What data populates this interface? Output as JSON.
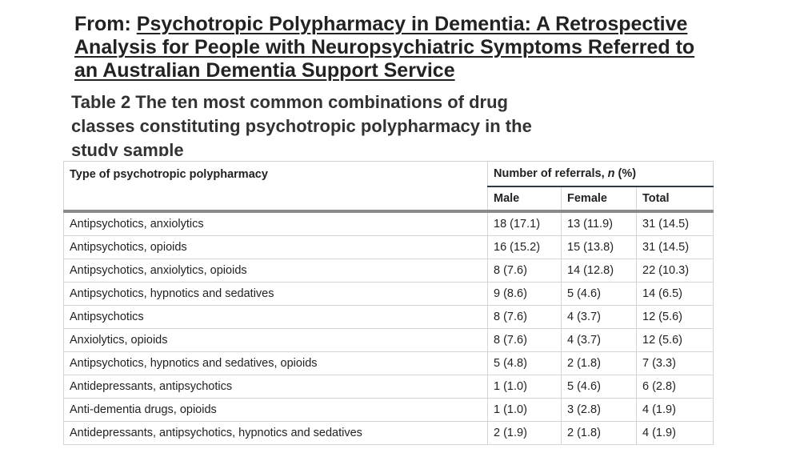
{
  "header": {
    "from_prefix": "From: ",
    "article_title": "Psychotropic Polypharmacy in Dementia: A Retrospective Analysis for People with Neuropsychiatric Symptoms Referred to an Australian Dementia Support Service",
    "table_caption": "Table 2 The ten most common combinations of drug classes constituting psychotropic polypharmacy in the study sample"
  },
  "table": {
    "col_type": "Type of psychotropic polypharmacy",
    "group_prefix": "Number of referrals, ",
    "group_n": "n",
    "group_suffix": " (%)",
    "col_male": "Male",
    "col_female": "Female",
    "col_total": "Total",
    "rows": [
      {
        "type": "Antipsychotics, anxiolytics",
        "male": "18 (17.1)",
        "female": "13 (11.9)",
        "total": "31 (14.5)"
      },
      {
        "type": "Antipsychotics, opioids",
        "male": "16 (15.2)",
        "female": "15 (13.8)",
        "total": "31 (14.5)"
      },
      {
        "type": "Antipsychotics, anxiolytics, opioids",
        "male": "8 (7.6)",
        "female": "14 (12.8)",
        "total": "22 (10.3)"
      },
      {
        "type": "Antipsychotics, hypnotics and sedatives",
        "male": "9 (8.6)",
        "female": "5 (4.6)",
        "total": "14 (6.5)"
      },
      {
        "type": "Antipsychotics",
        "male": "8 (7.6)",
        "female": "4 (3.7)",
        "total": "12 (5.6)"
      },
      {
        "type": "Anxiolytics, opioids",
        "male": "8 (7.6)",
        "female": "4 (3.7)",
        "total": "12 (5.6)"
      },
      {
        "type": "Antipsychotics, hypnotics and sedatives, opioids",
        "male": "5 (4.8)",
        "female": "2 (1.8)",
        "total": "7 (3.3)"
      },
      {
        "type": "Antidepressants, antipsychotics",
        "male": "1 (1.0)",
        "female": "5 (4.6)",
        "total": "6 (2.8)"
      },
      {
        "type": "Anti-dementia drugs, opioids",
        "male": "1 (1.0)",
        "female": "3 (2.8)",
        "total": "4 (1.9)"
      },
      {
        "type": "Antidepressants, antipsychotics, hypnotics and sedatives",
        "male": "2 (1.9)",
        "female": "2 (1.8)",
        "total": "4 (1.9)"
      }
    ]
  }
}
